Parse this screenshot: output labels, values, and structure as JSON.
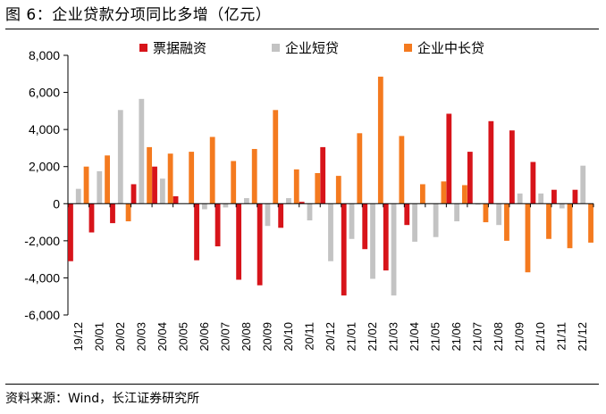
{
  "title": "图 6：企业贷款分项同比多增（亿元）",
  "source": "资料来源：Wind，长江证券研究所",
  "colors": {
    "票据融资": "#d7141a",
    "企业短贷": "#c3c3c3",
    "企业中长贷": "#f47a1f"
  },
  "chart_data": {
    "type": "bar",
    "title": "企业贷款分项同比多增（亿元）",
    "xlabel": "",
    "ylabel": "",
    "ylim": [
      -6000,
      8000
    ],
    "yticks": [
      -6000,
      -4000,
      -2000,
      0,
      2000,
      4000,
      6000,
      8000
    ],
    "ytick_labels": [
      "-6,000",
      "-4,000",
      "-2,000",
      "0",
      "2,000",
      "4,000",
      "6,000",
      "8,000"
    ],
    "legend_position": "top",
    "categories": [
      "19/12",
      "20/01",
      "20/02",
      "20/03",
      "20/04",
      "20/05",
      "20/06",
      "20/07",
      "20/08",
      "20/09",
      "20/10",
      "20/11",
      "20/12",
      "21/01",
      "21/02",
      "21/03",
      "21/04",
      "21/05",
      "21/06",
      "21/07",
      "21/08",
      "21/09",
      "21/10",
      "21/11",
      "21/12"
    ],
    "series": [
      {
        "name": "票据融资",
        "values": [
          -3100,
          -1550,
          -1050,
          1050,
          2000,
          400,
          -3050,
          -2300,
          -4100,
          -4400,
          -1300,
          100,
          3050,
          -4950,
          -2450,
          -3600,
          -1150,
          0,
          4850,
          2800,
          4450,
          3950,
          2250,
          750,
          750
        ]
      },
      {
        "name": "企业短贷",
        "values": [
          800,
          1750,
          5050,
          5650,
          1350,
          0,
          -300,
          -200,
          300,
          -1200,
          300,
          -900,
          -3100,
          -1900,
          -4050,
          -4950,
          -2050,
          -1800,
          -950,
          -50,
          -1150,
          550,
          550,
          -250,
          2050
        ]
      },
      {
        "name": "企业中长贷",
        "values": [
          2000,
          2600,
          -950,
          3050,
          2700,
          2800,
          3600,
          2300,
          2950,
          5050,
          1850,
          1650,
          1500,
          3800,
          6850,
          3650,
          1050,
          1200,
          1000,
          -1000,
          -2000,
          -3700,
          -1900,
          -2400,
          -2100
        ]
      }
    ]
  }
}
